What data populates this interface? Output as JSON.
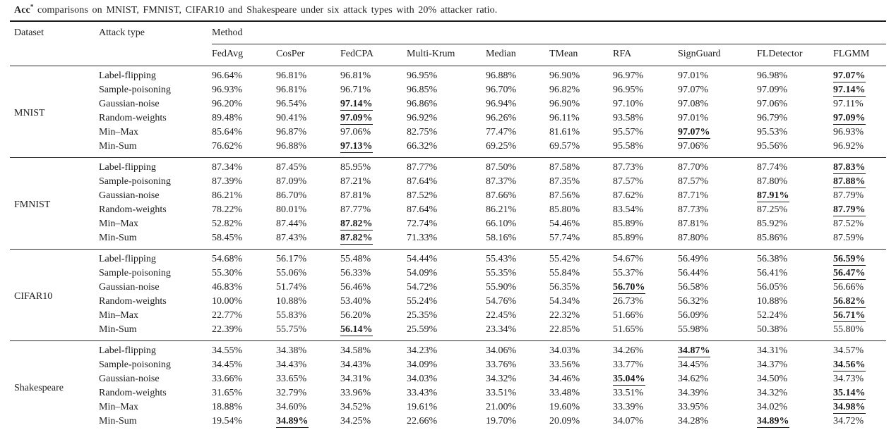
{
  "caption": {
    "metric": "Acc",
    "superscript": "*",
    "rest": " comparisons on MNIST, FMNIST, CIFAR10 and Shakespeare under six attack types with 20% attacker ratio."
  },
  "table": {
    "dataset_header": "Dataset",
    "attack_header": "Attack type",
    "method_group_header": "Method",
    "method_headers": [
      "FedAvg",
      "CosPer",
      "FedCPA",
      "Multi-Krum",
      "Median",
      "TMean",
      "RFA",
      "SignGuard",
      "FLDetector",
      "FLGMM"
    ],
    "sections": [
      {
        "dataset": "MNIST",
        "rows": [
          {
            "attack": "Label-flipping",
            "values": [
              "96.64%",
              "96.81%",
              "96.81%",
              "96.95%",
              "96.88%",
              "96.90%",
              "96.97%",
              "97.01%",
              "96.98%",
              "97.07%"
            ],
            "best": [
              9
            ]
          },
          {
            "attack": "Sample-poisoning",
            "values": [
              "96.93%",
              "96.81%",
              "96.71%",
              "96.85%",
              "96.70%",
              "96.82%",
              "96.95%",
              "97.07%",
              "97.09%",
              "97.14%"
            ],
            "best": [
              9
            ]
          },
          {
            "attack": "Gaussian-noise",
            "values": [
              "96.20%",
              "96.54%",
              "97.14%",
              "96.86%",
              "96.94%",
              "96.90%",
              "97.10%",
              "97.08%",
              "97.06%",
              "97.11%"
            ],
            "best": [
              2
            ]
          },
          {
            "attack": "Random-weights",
            "values": [
              "89.48%",
              "90.41%",
              "97.09%",
              "96.92%",
              "96.26%",
              "96.11%",
              "93.58%",
              "97.01%",
              "96.79%",
              "97.09%"
            ],
            "best": [
              2,
              9
            ]
          },
          {
            "attack": "Min–Max",
            "values": [
              "85.64%",
              "96.87%",
              "97.06%",
              "82.75%",
              "77.47%",
              "81.61%",
              "95.57%",
              "97.07%",
              "95.53%",
              "96.93%"
            ],
            "best": [
              7
            ]
          },
          {
            "attack": "Min-Sum",
            "values": [
              "76.62%",
              "96.88%",
              "97.13%",
              "66.32%",
              "69.25%",
              "69.57%",
              "95.58%",
              "97.06%",
              "95.56%",
              "96.92%"
            ],
            "best": [
              2
            ]
          }
        ]
      },
      {
        "dataset": "FMNIST",
        "rows": [
          {
            "attack": "Label-flipping",
            "values": [
              "87.34%",
              "87.45%",
              "85.95%",
              "87.77%",
              "87.50%",
              "87.58%",
              "87.73%",
              "87.70%",
              "87.74%",
              "87.83%"
            ],
            "best": [
              9
            ]
          },
          {
            "attack": "Sample-poisoning",
            "values": [
              "87.39%",
              "87.09%",
              "87.21%",
              "87.64%",
              "87.37%",
              "87.35%",
              "87.57%",
              "87.57%",
              "87.80%",
              "87.88%"
            ],
            "best": [
              9
            ]
          },
          {
            "attack": "Gaussian-noise",
            "values": [
              "86.21%",
              "86.70%",
              "87.81%",
              "87.52%",
              "87.66%",
              "87.56%",
              "87.62%",
              "87.71%",
              "87.91%",
              "87.79%"
            ],
            "best": [
              8
            ]
          },
          {
            "attack": "Random-weights",
            "values": [
              "78.22%",
              "80.01%",
              "87.77%",
              "87.64%",
              "86.21%",
              "85.80%",
              "83.54%",
              "87.73%",
              "87.25%",
              "87.79%"
            ],
            "best": [
              9
            ]
          },
          {
            "attack": "Min–Max",
            "values": [
              "52.82%",
              "87.44%",
              "87.82%",
              "72.74%",
              "66.10%",
              "54.46%",
              "85.89%",
              "87.81%",
              "85.92%",
              "87.52%"
            ],
            "best": [
              2
            ]
          },
          {
            "attack": "Min-Sum",
            "values": [
              "58.45%",
              "87.43%",
              "87.82%",
              "71.33%",
              "58.16%",
              "57.74%",
              "85.89%",
              "87.80%",
              "85.86%",
              "87.59%"
            ],
            "best": [
              2
            ]
          }
        ]
      },
      {
        "dataset": "CIFAR10",
        "rows": [
          {
            "attack": "Label-flipping",
            "values": [
              "54.68%",
              "56.17%",
              "55.48%",
              "54.44%",
              "55.43%",
              "55.42%",
              "54.67%",
              "56.49%",
              "56.38%",
              "56.59%"
            ],
            "best": [
              9
            ]
          },
          {
            "attack": "Sample-poisoning",
            "values": [
              "55.30%",
              "55.06%",
              "56.33%",
              "54.09%",
              "55.35%",
              "55.84%",
              "55.37%",
              "56.44%",
              "56.41%",
              "56.47%"
            ],
            "best": [
              9
            ]
          },
          {
            "attack": "Gaussian-noise",
            "values": [
              "46.83%",
              "51.74%",
              "56.46%",
              "54.72%",
              "55.90%",
              "56.35%",
              "56.70%",
              "56.58%",
              "56.05%",
              "56.66%"
            ],
            "best": [
              6
            ]
          },
          {
            "attack": "Random-weights",
            "values": [
              "10.00%",
              "10.88%",
              "53.40%",
              "55.24%",
              "54.76%",
              "54.34%",
              "26.73%",
              "56.32%",
              "10.88%",
              "56.82%"
            ],
            "best": [
              9
            ]
          },
          {
            "attack": "Min–Max",
            "values": [
              "22.77%",
              "55.83%",
              "56.20%",
              "25.35%",
              "22.45%",
              "22.32%",
              "51.66%",
              "56.09%",
              "52.24%",
              "56.71%"
            ],
            "best": [
              9
            ]
          },
          {
            "attack": "Min-Sum",
            "values": [
              "22.39%",
              "55.75%",
              "56.14%",
              "25.59%",
              "23.34%",
              "22.85%",
              "51.65%",
              "55.98%",
              "50.38%",
              "55.80%"
            ],
            "best": [
              2
            ]
          }
        ]
      },
      {
        "dataset": "Shakespeare",
        "rows": [
          {
            "attack": "Label-flipping",
            "values": [
              "34.55%",
              "34.38%",
              "34.58%",
              "34.23%",
              "34.06%",
              "34.03%",
              "34.26%",
              "34.87%",
              "34.31%",
              "34.57%"
            ],
            "best": [
              7
            ]
          },
          {
            "attack": "Sample-poisoning",
            "values": [
              "34.45%",
              "34.43%",
              "34.43%",
              "34.09%",
              "33.76%",
              "33.56%",
              "33.77%",
              "34.45%",
              "34.37%",
              "34.56%"
            ],
            "best": [
              9
            ]
          },
          {
            "attack": "Gaussian-noise",
            "values": [
              "33.66%",
              "33.65%",
              "34.31%",
              "34.03%",
              "34.32%",
              "34.46%",
              "35.04%",
              "34.62%",
              "34.50%",
              "34.73%"
            ],
            "best": [
              6
            ]
          },
          {
            "attack": "Random-weights",
            "values": [
              "31.65%",
              "32.79%",
              "33.96%",
              "33.43%",
              "33.51%",
              "33.48%",
              "33.51%",
              "34.39%",
              "34.32%",
              "35.14%"
            ],
            "best": [
              9
            ]
          },
          {
            "attack": "Min–Max",
            "values": [
              "18.88%",
              "34.60%",
              "34.52%",
              "19.61%",
              "21.00%",
              "19.60%",
              "33.39%",
              "33.95%",
              "34.02%",
              "34.98%"
            ],
            "best": [
              9
            ]
          },
          {
            "attack": "Min-Sum",
            "values": [
              "19.54%",
              "34.89%",
              "34.25%",
              "22.66%",
              "19.70%",
              "20.09%",
              "34.07%",
              "34.28%",
              "34.89%",
              "34.72%"
            ],
            "best": [
              1,
              8
            ]
          }
        ]
      }
    ]
  }
}
